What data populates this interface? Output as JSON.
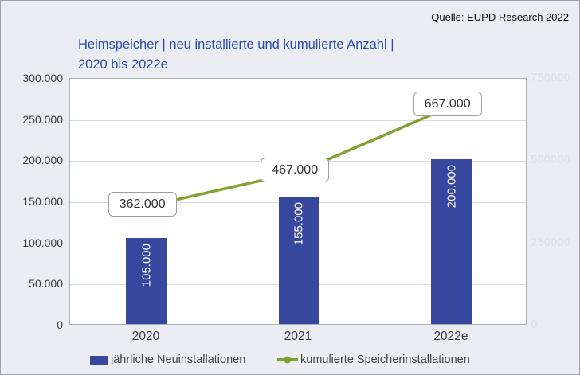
{
  "source": "Quelle: EUPD Research 2022",
  "title": {
    "line1": "Heimspeicher | neu installierte und kumulierte Anzahl |",
    "line2": "2020 bis 2022e"
  },
  "colors": {
    "bar": "#37479d",
    "line": "#82a12e",
    "title_text": "#2b4da4",
    "background": "#ebedf3",
    "plot_background": "#ffffff",
    "gridline": "#d9dbe1",
    "faint_right_axis": "#dfe2ea"
  },
  "chart_data": {
    "type": "bar",
    "subtype": "combo bar + line",
    "title": "Heimspeicher | neu installierte und kumulierte Anzahl | 2020 bis 2022e",
    "categories": [
      "2020",
      "2021",
      "2022e"
    ],
    "series": [
      {
        "name": "jährliche Neuinstallationen",
        "type": "bar",
        "axis": "left",
        "values": [
          105000,
          155000,
          200000
        ],
        "value_labels": [
          "105.000",
          "155.000",
          "200.000"
        ]
      },
      {
        "name": "kumulierte Speicherinstallationen",
        "type": "line",
        "axis": "right",
        "values": [
          362000,
          467000,
          667000
        ],
        "value_labels": [
          "362.000",
          "467.000",
          "667.000"
        ]
      }
    ],
    "left_axis": {
      "min": 0,
      "max": 300000,
      "ticks": [
        "300.000",
        "250.000",
        "200.000",
        "150.000",
        "100.000",
        "50.000",
        "0"
      ]
    },
    "right_axis": {
      "min": 0,
      "max": 750000,
      "ticks": [
        "750000",
        "500000",
        "250000",
        "0"
      ]
    },
    "grid": true,
    "legend_position": "bottom"
  }
}
